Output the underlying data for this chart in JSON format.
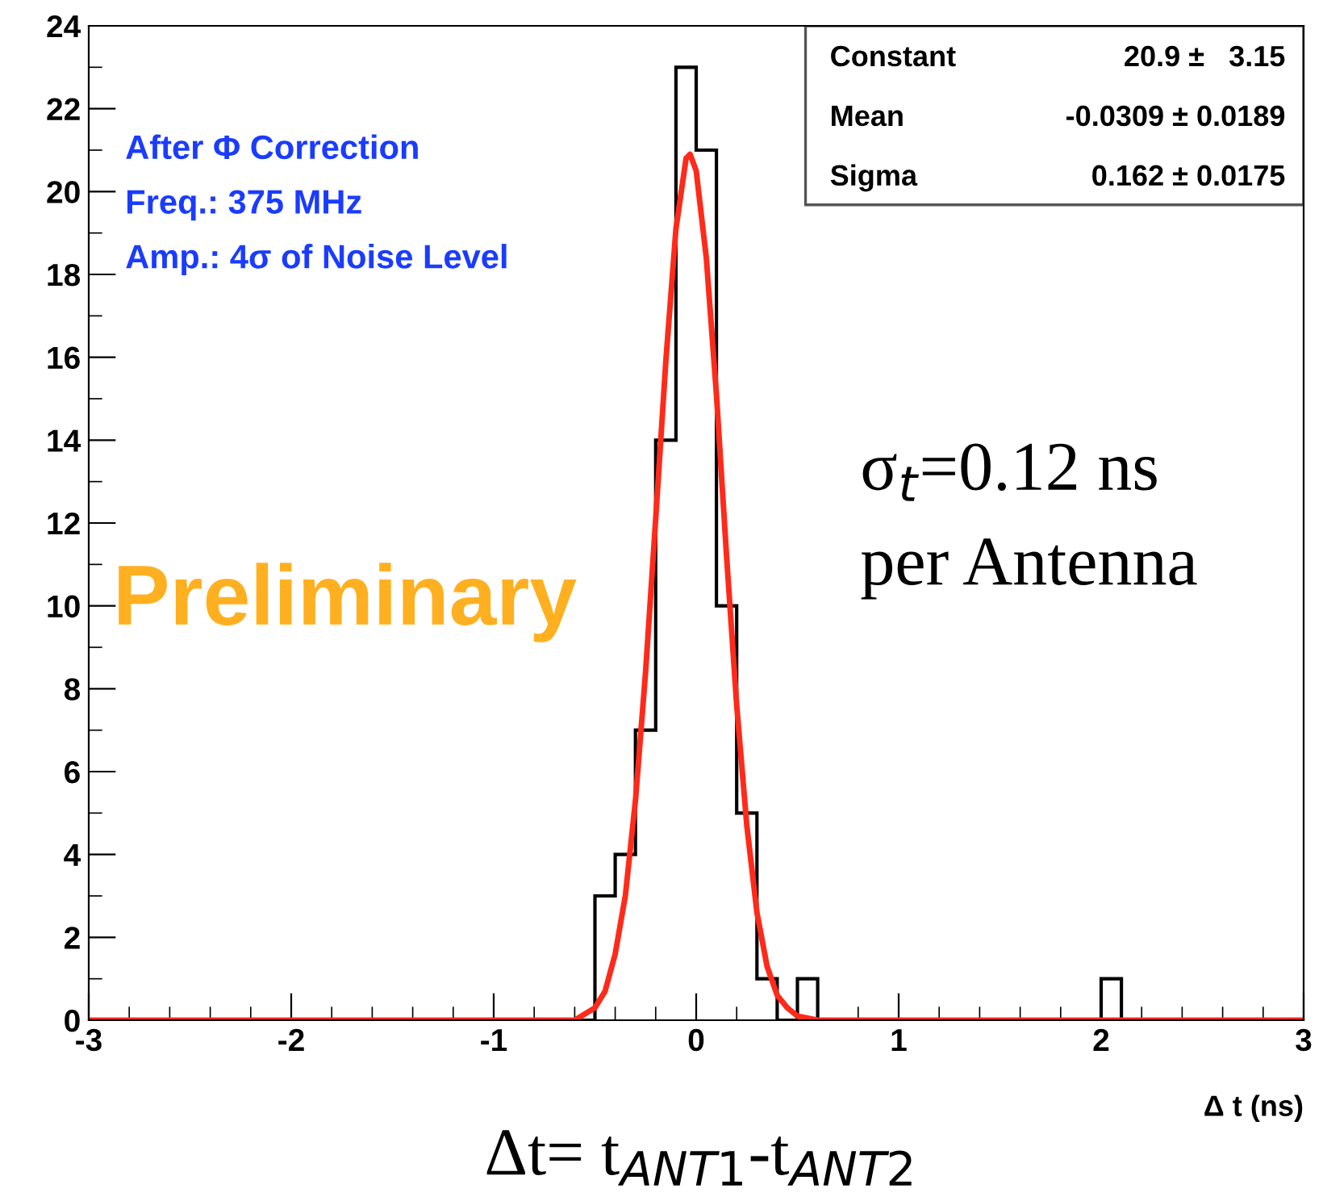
{
  "chart_data": {
    "type": "histogram",
    "xlabel": "Δ t (ns)",
    "bins": [
      -3.0,
      -2.9,
      -2.8,
      -2.7,
      -2.6,
      -2.5,
      -2.4,
      -2.3,
      -2.2,
      -2.1,
      -2.0,
      -1.9,
      -1.8,
      -1.7,
      -1.6,
      -1.5,
      -1.4,
      -1.3,
      -1.2,
      -1.1,
      -1.0,
      -0.9,
      -0.8,
      -0.7,
      -0.6,
      -0.5,
      -0.4,
      -0.3,
      -0.2,
      -0.1,
      0.0,
      0.1,
      0.2,
      0.3,
      0.4,
      0.5,
      0.6,
      0.7,
      0.8,
      0.9,
      1.0,
      1.1,
      1.2,
      1.3,
      1.4,
      1.5,
      1.6,
      1.7,
      1.8,
      1.9,
      2.0,
      2.1,
      2.2,
      2.3,
      2.4,
      2.5,
      2.6,
      2.7,
      2.8,
      2.9,
      3.0
    ],
    "values": [
      0,
      0,
      0,
      0,
      0,
      0,
      0,
      0,
      0,
      0,
      0,
      0,
      0,
      0,
      0,
      0,
      0,
      0,
      0,
      0,
      0,
      0,
      0,
      0,
      0,
      3,
      4,
      7,
      14,
      23,
      21,
      10,
      5,
      1,
      0,
      1,
      0,
      0,
      0,
      0,
      0,
      0,
      0,
      0,
      0,
      0,
      0,
      0,
      0,
      0,
      1,
      0,
      0,
      0,
      0,
      0,
      0,
      0,
      0,
      0
    ],
    "color": "#000000",
    "series": [
      {
        "type": "line",
        "color": "#ff2a1a",
        "x": [
          -3.0,
          -1.0,
          -0.6,
          -0.5,
          -0.45,
          -0.4,
          -0.35,
          -0.3,
          -0.25,
          -0.2,
          -0.15,
          -0.1,
          -0.05,
          -0.03,
          0.0,
          0.05,
          0.1,
          0.15,
          0.2,
          0.25,
          0.3,
          0.35,
          0.4,
          0.45,
          0.5,
          0.6,
          1.0,
          3.0
        ],
        "values": [
          0,
          0,
          0.0,
          0.3,
          0.7,
          1.6,
          3.0,
          5.3,
          8.4,
          12.1,
          15.9,
          19.1,
          20.8,
          20.9,
          20.5,
          18.4,
          15.1,
          11.2,
          7.6,
          4.7,
          2.6,
          1.3,
          0.6,
          0.3,
          0.1,
          0.0,
          0,
          0
        ]
      }
    ],
    "xlim": [
      -3,
      3
    ],
    "xticks": [
      -3,
      -2,
      -1,
      0,
      1,
      2,
      3
    ],
    "ylim": [
      0,
      24
    ],
    "yticks": [
      0,
      2,
      4,
      6,
      8,
      10,
      12,
      14,
      16,
      18,
      20,
      22,
      24
    ],
    "grid": false,
    "legend": false,
    "annotations": [
      "After Φ Correction",
      "Freq.: 375 MHz",
      "Amp.: 4σ of Noise Level",
      "Constant",
      "20.9 ±   3.15",
      "Mean",
      "-0.0309 ± 0.0189",
      "Sigma",
      "0.162 ± 0.0175",
      "σ$_{t}$=0.12 ns",
      "per Antenna",
      "Δt= t$_{ANT1}$-t$_{ANT2}$",
      "Preliminary"
    ]
  }
}
